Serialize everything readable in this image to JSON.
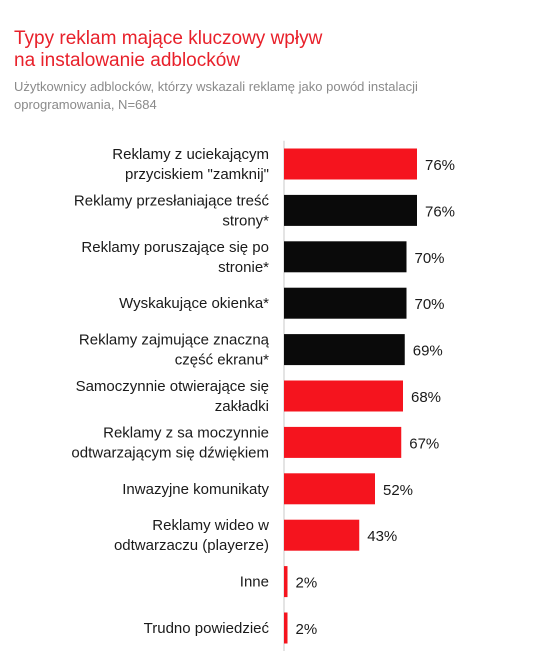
{
  "chart_data": {
    "type": "bar",
    "orientation": "horizontal",
    "title_lines": [
      "Typy reklam mające kluczowy wpływ",
      "na instalowanie adblocków"
    ],
    "subtitle_lines": [
      "Użytkownicy adblocków, którzy wskazali reklamę jako powód instalacji",
      "oprogramowania, N=684"
    ],
    "value_suffix": "%",
    "xlim": [
      0,
      100
    ],
    "grid": false,
    "legend": "none",
    "colors": {
      "red": "#f5141e",
      "black": "#0a0a0a",
      "title": "#e8202a",
      "subtitle": "#8a8a8a",
      "axis": "#c8c8c8"
    },
    "bars": [
      {
        "label_lines": [
          "Reklamy z uciekającym",
          "przyciskiem \"zamknij\""
        ],
        "value": 76,
        "color": "red"
      },
      {
        "label_lines": [
          "Reklamy przesłaniające treść",
          "strony*"
        ],
        "value": 76,
        "color": "black"
      },
      {
        "label_lines": [
          "Reklamy poruszające się po",
          "stronie*"
        ],
        "value": 70,
        "color": "black"
      },
      {
        "label_lines": [
          "Wyskakujące okienka*"
        ],
        "value": 70,
        "color": "black"
      },
      {
        "label_lines": [
          "Reklamy zajmujące znaczną",
          "część ekranu*"
        ],
        "value": 69,
        "color": "black"
      },
      {
        "label_lines": [
          "Samoczynnie otwierające się",
          "zakładki"
        ],
        "value": 68,
        "color": "red"
      },
      {
        "label_lines": [
          "Reklamy z sa moczynnie",
          "odtwarzającym się dźwiękiem"
        ],
        "value": 67,
        "color": "red"
      },
      {
        "label_lines": [
          "Inwazyjne komunikaty"
        ],
        "value": 52,
        "color": "red"
      },
      {
        "label_lines": [
          "Reklamy wideo w",
          "odtwarzaczu (playerze)"
        ],
        "value": 43,
        "color": "red"
      },
      {
        "label_lines": [
          "Inne"
        ],
        "value": 2,
        "color": "red"
      },
      {
        "label_lines": [
          "Trudno powiedzieć"
        ],
        "value": 2,
        "color": "red"
      }
    ]
  }
}
